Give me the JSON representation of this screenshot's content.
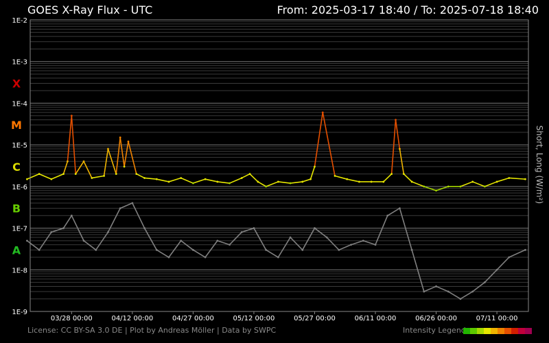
{
  "header": {
    "title": "GOES X-Ray Flux - UTC",
    "range": "From: 2025-03-17 18:40  /  To: 2025-07-18 18:40"
  },
  "footer": {
    "credits": "License: CC BY-SA 3.0 DE | Plot by Andreas Möller | Data by SWPC",
    "legend_label": "Intensity Legend",
    "legend_colors": [
      "#22b400",
      "#5ec800",
      "#a6d800",
      "#e6e600",
      "#f0b400",
      "#f08200",
      "#e65000",
      "#d21e00",
      "#c0003c",
      "#a00050"
    ]
  },
  "chart_data": {
    "type": "line",
    "title": "GOES X-Ray Flux - UTC",
    "ylabel": "Short, Long (W/m²)",
    "yscale": "log",
    "ylim": [
      1e-09,
      0.01
    ],
    "ytick_labels": [
      "1E-2",
      "1E-3",
      "1E-4",
      "1E-5",
      "1E-6",
      "1E-7",
      "1E-8",
      "1E-9"
    ],
    "xtick_labels": [
      "03/28 00:00",
      "04/12 00:00",
      "04/27 00:00",
      "05/12 00:00",
      "05/27 00:00",
      "06/11 00:00",
      "06/26 00:00",
      "07/11 00:00"
    ],
    "xrange": [
      "2025-03-17 18:40",
      "2025-07-18 18:40"
    ],
    "flare_classes": [
      {
        "label": "X",
        "flux": 0.0003,
        "color": "#cc0000"
      },
      {
        "label": "M",
        "flux": 3e-05,
        "color": "#ff7700"
      },
      {
        "label": "C",
        "flux": 3e-06,
        "color": "#dddd00"
      },
      {
        "label": "B",
        "flux": 3e-07,
        "color": "#66cc00"
      },
      {
        "label": "A",
        "flux": 3e-08,
        "color": "#22bb22"
      }
    ],
    "grid": true,
    "series": [
      {
        "name": "Long",
        "color_scale": "intensity",
        "x": [
          "2025-03-17",
          "2025-03-20",
          "2025-03-23",
          "2025-03-26",
          "2025-03-27",
          "2025-03-28",
          "2025-03-29",
          "2025-03-31",
          "2025-04-02",
          "2025-04-05",
          "2025-04-06",
          "2025-04-08",
          "2025-04-09",
          "2025-04-10",
          "2025-04-11",
          "2025-04-13",
          "2025-04-15",
          "2025-04-18",
          "2025-04-21",
          "2025-04-24",
          "2025-04-27",
          "2025-04-30",
          "2025-05-03",
          "2025-05-06",
          "2025-05-09",
          "2025-05-11",
          "2025-05-13",
          "2025-05-15",
          "2025-05-18",
          "2025-05-21",
          "2025-05-24",
          "2025-05-26",
          "2025-05-27",
          "2025-05-29",
          "2025-06-01",
          "2025-06-04",
          "2025-06-07",
          "2025-06-10",
          "2025-06-13",
          "2025-06-15",
          "2025-06-16",
          "2025-06-17",
          "2025-06-18",
          "2025-06-20",
          "2025-06-23",
          "2025-06-26",
          "2025-06-29",
          "2025-07-02",
          "2025-07-05",
          "2025-07-08",
          "2025-07-11",
          "2025-07-14",
          "2025-07-18"
        ],
        "y": [
          1.5e-06,
          2e-06,
          1.5e-06,
          2e-06,
          4e-06,
          5e-05,
          2e-06,
          4e-06,
          1.6e-06,
          1.8e-06,
          8e-06,
          2e-06,
          1.5e-05,
          3e-06,
          1.2e-05,
          2e-06,
          1.6e-06,
          1.5e-06,
          1.3e-06,
          1.6e-06,
          1.2e-06,
          1.5e-06,
          1.3e-06,
          1.2e-06,
          1.6e-06,
          2e-06,
          1.3e-06,
          1e-06,
          1.3e-06,
          1.2e-06,
          1.3e-06,
          1.5e-06,
          3e-06,
          6e-05,
          1.8e-06,
          1.5e-06,
          1.3e-06,
          1.3e-06,
          1.3e-06,
          2e-06,
          4e-05,
          8e-06,
          2e-06,
          1.3e-06,
          1e-06,
          8e-07,
          1e-06,
          1e-06,
          1.3e-06,
          1e-06,
          1.3e-06,
          1.6e-06,
          1.5e-06
        ]
      },
      {
        "name": "Short",
        "color": "#808080",
        "x": [
          "2025-03-17",
          "2025-03-20",
          "2025-03-23",
          "2025-03-26",
          "2025-03-28",
          "2025-03-31",
          "2025-04-03",
          "2025-04-06",
          "2025-04-09",
          "2025-04-12",
          "2025-04-15",
          "2025-04-18",
          "2025-04-21",
          "2025-04-24",
          "2025-04-27",
          "2025-04-30",
          "2025-05-03",
          "2025-05-06",
          "2025-05-09",
          "2025-05-12",
          "2025-05-15",
          "2025-05-18",
          "2025-05-21",
          "2025-05-24",
          "2025-05-27",
          "2025-05-30",
          "2025-06-02",
          "2025-06-05",
          "2025-06-08",
          "2025-06-11",
          "2025-06-14",
          "2025-06-17",
          "2025-06-20",
          "2025-06-23",
          "2025-06-26",
          "2025-06-29",
          "2025-07-02",
          "2025-07-05",
          "2025-07-08",
          "2025-07-11",
          "2025-07-14",
          "2025-07-18"
        ],
        "y": [
          5e-08,
          3e-08,
          8e-08,
          1e-07,
          2e-07,
          5e-08,
          3e-08,
          8e-08,
          3e-07,
          4e-07,
          1e-07,
          3e-08,
          2e-08,
          5e-08,
          3e-08,
          2e-08,
          5e-08,
          4e-08,
          8e-08,
          1e-07,
          3e-08,
          2e-08,
          6e-08,
          3e-08,
          1e-07,
          6e-08,
          3e-08,
          4e-08,
          5e-08,
          4e-08,
          2e-07,
          3e-07,
          3e-08,
          3e-09,
          4e-09,
          3e-09,
          2e-09,
          3e-09,
          5e-09,
          1e-08,
          2e-08,
          3e-08
        ]
      }
    ]
  }
}
